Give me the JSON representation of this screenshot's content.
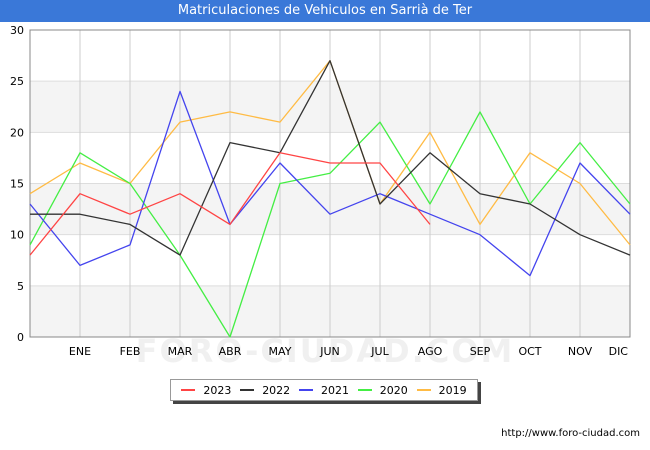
{
  "chart_data": {
    "type": "line",
    "title": "Matriculaciones de Vehiculos en Sarrià de Ter",
    "categories": [
      "",
      "ENE",
      "FEB",
      "MAR",
      "ABR",
      "MAY",
      "JUN",
      "JUL",
      "AGO",
      "SEP",
      "OCT",
      "NOV",
      "DIC"
    ],
    "ylim": [
      0,
      30
    ],
    "yticks": [
      0,
      5,
      10,
      15,
      20,
      25,
      30
    ],
    "grid": true,
    "legend_position": "bottom",
    "series": [
      {
        "name": "2023",
        "color": "#ff4444",
        "values": [
          8,
          14,
          12,
          14,
          11,
          18,
          17,
          17,
          11,
          null,
          null,
          null,
          null
        ]
      },
      {
        "name": "2022",
        "color": "#333333",
        "values": [
          12,
          12,
          11,
          8,
          19,
          18,
          27,
          13,
          18,
          14,
          13,
          10,
          8
        ]
      },
      {
        "name": "2021",
        "color": "#4444ee",
        "values": [
          13,
          7,
          9,
          24,
          11,
          17,
          12,
          14,
          12,
          10,
          6,
          17,
          12
        ]
      },
      {
        "name": "2020",
        "color": "#44ee44",
        "values": [
          9,
          18,
          15,
          8,
          0,
          15,
          16,
          21,
          13,
          22,
          13,
          19,
          13
        ]
      },
      {
        "name": "2019",
        "color": "#ffbb44",
        "values": [
          14,
          17,
          15,
          21,
          22,
          21,
          27,
          13,
          20,
          11,
          18,
          15,
          9
        ]
      }
    ]
  },
  "footer": {
    "source": "http://www.foro-ciudad.com",
    "watermark": "FORO-CIUDAD.COM"
  }
}
